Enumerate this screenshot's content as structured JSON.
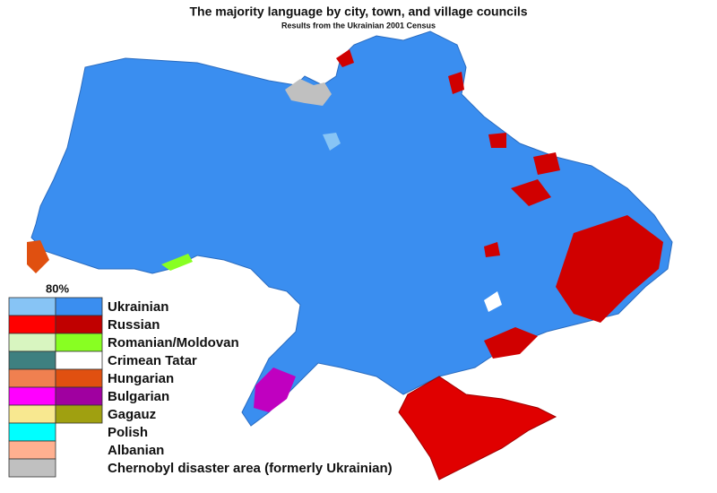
{
  "title": "The majority language by city, town, and village councils",
  "subtitle": "Results from the Ukrainian 2001 Census",
  "legend": {
    "threshold": "80%",
    "items": [
      {
        "label": "Ukrainian",
        "light": "#87c4f5",
        "dark": "#3a8ef0"
      },
      {
        "label": "Russian",
        "light": "#ff0000",
        "dark": "#c00000"
      },
      {
        "label": "Romanian/Moldovan",
        "light": "#d8f5c0",
        "dark": "#88ff22"
      },
      {
        "label": "Crimean Tatar",
        "light": "#3e8080",
        "dark": "#ffffff"
      },
      {
        "label": "Hungarian",
        "light": "#f08050",
        "dark": "#e05010"
      },
      {
        "label": "Bulgarian",
        "light": "#ff00ff",
        "dark": "#a000a0"
      },
      {
        "label": "Gagauz",
        "light": "#f8e890",
        "dark": "#a0a010"
      },
      {
        "label": "Polish",
        "light": "#00ffff"
      },
      {
        "label": "Albanian",
        "light": "#ffb090"
      },
      {
        "label": "Chernobyl disaster area (formerly Ukrainian)",
        "light": "#c0c0c0"
      }
    ]
  }
}
